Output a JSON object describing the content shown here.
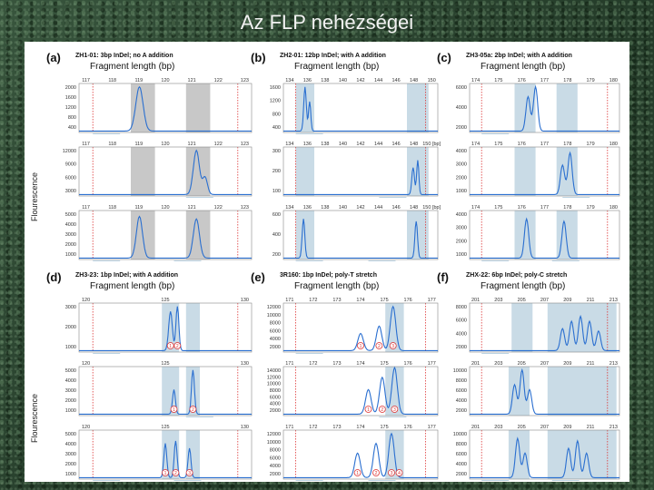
{
  "slide": {
    "title": "Az FLP nehézségei"
  },
  "figure": {
    "y_axis_label": "Flourescence",
    "panels": [
      {
        "label": "(a)",
        "desc": "ZH1-01: 3bp InDel; no A addition",
        "axis_title": "Fragment length (bp)",
        "rows": [
          {
            "ticks": [
              "117",
              "118",
              "119",
              "120",
              "121",
              "122",
              "123"
            ],
            "yticks": [
              "2000",
              "1600",
              "1200",
              "800",
              "400"
            ],
            "tags": [
              "Bristol"
            ]
          },
          {
            "ticks": [
              "117",
              "118",
              "119",
              "120",
              "121",
              "122",
              "123"
            ],
            "yticks": [
              "12000",
              "9000",
              "6000",
              "3000"
            ],
            "tags": [
              "Hawaii"
            ]
          },
          {
            "ticks": [
              "117",
              "118",
              "119",
              "120",
              "121",
              "122",
              "123"
            ],
            "yticks": [
              "5000",
              "4000",
              "3000",
              "2000",
              "1000"
            ],
            "tags": [
              "Bristol",
              "Hawaii"
            ]
          }
        ]
      },
      {
        "label": "(b)",
        "desc": "ZH2-01: 12bp InDel; with A addition",
        "axis_title": "Fragment length (bp)",
        "rows": [
          {
            "ticks": [
              "134",
              "136",
              "138",
              "140",
              "142",
              "144",
              "146",
              "148",
              "150"
            ],
            "yticks": [
              "1600",
              "1200",
              "800",
              "400"
            ],
            "tags": [
              "Bristol"
            ]
          },
          {
            "ticks": [
              "134",
              "136",
              "138",
              "140",
              "142",
              "144",
              "146",
              "148",
              "150 [bp]"
            ],
            "yticks": [
              "300",
              "200",
              "100"
            ],
            "tags": [
              "Hawaii"
            ]
          },
          {
            "ticks": [
              "134",
              "136",
              "138",
              "140",
              "142",
              "144",
              "146",
              "148",
              "150 [bp]"
            ],
            "yticks": [
              "600",
              "400",
              "200"
            ],
            "tags": [
              "Bristol",
              "Hawaii"
            ]
          }
        ]
      },
      {
        "label": "(c)",
        "desc": "ZH3-05a: 2bp InDel; with A addition",
        "axis_title": "Fragment length (bp)",
        "rows": [
          {
            "ticks": [
              "174",
              "175",
              "176",
              "177",
              "178",
              "179",
              "180"
            ],
            "yticks": [
              "6000",
              "4000",
              "2000"
            ],
            "tags": [
              "Bristol"
            ]
          },
          {
            "ticks": [
              "174",
              "175",
              "176",
              "177",
              "178",
              "179",
              "180"
            ],
            "yticks": [
              "4000",
              "3000",
              "2000",
              "1000"
            ],
            "tags": [
              "Hawaii"
            ]
          },
          {
            "ticks": [
              "174",
              "175",
              "176",
              "177",
              "178",
              "179",
              "180"
            ],
            "yticks": [
              "4000",
              "3000",
              "2000",
              "1000"
            ],
            "tags": [
              "Bristol",
              "Hawaii"
            ]
          }
        ]
      },
      {
        "label": "(d)",
        "desc": "ZH3-23: 1bp InDel; with A addition",
        "axis_title": "Fragment length (bp)",
        "rows": [
          {
            "ticks": [
              "120",
              "125",
              "130"
            ],
            "yticks": [
              "3000",
              "2000",
              "1000"
            ],
            "tags": [
              "Bristol"
            ],
            "markers": [
              "1",
              "2"
            ]
          },
          {
            "ticks": [
              "120",
              "125",
              "130"
            ],
            "yticks": [
              "5000",
              "4000",
              "3000",
              "2000",
              "1000"
            ],
            "tags": [
              "Hawaii"
            ],
            "markers": [
              "1",
              "2"
            ]
          },
          {
            "ticks": [
              "120",
              "125",
              "130"
            ],
            "yticks": [
              "5000",
              "4000",
              "3000",
              "2000",
              "1000"
            ],
            "tags": [
              "Bristol",
              "Hawaii"
            ],
            "markers": [
              "1",
              "2",
              "3"
            ]
          }
        ]
      },
      {
        "label": "(e)",
        "desc": "3R160: 1bp InDel; poly-T stretch",
        "axis_title": "Fragment length (bp)",
        "rows": [
          {
            "ticks": [
              "171",
              "172",
              "173",
              "174",
              "175",
              "176",
              "177"
            ],
            "yticks": [
              "12000",
              "10000",
              "8000",
              "6000",
              "4000",
              "2000"
            ],
            "tags": [
              "EF"
            ],
            "markers": [
              "1",
              "2",
              "3"
            ]
          },
          {
            "ticks": [
              "171",
              "172",
              "173",
              "174",
              "175",
              "176",
              "177"
            ],
            "yticks": [
              "14000",
              "12000",
              "10000",
              "8000",
              "6000",
              "4000",
              "2000"
            ],
            "tags": [
              "HH"
            ],
            "markers": [
              "1",
              "2",
              "3"
            ]
          },
          {
            "ticks": [
              "171",
              "172",
              "173",
              "174",
              "175",
              "176",
              "177"
            ],
            "yticks": [
              "12000",
              "10000",
              "8000",
              "6000",
              "4000",
              "2000"
            ],
            "tags": [
              "EF",
              "FHT"
            ],
            "markers": [
              "1",
              "2",
              "3",
              "4"
            ]
          }
        ]
      },
      {
        "label": "(f)",
        "desc": "ZHX-22: 6bp InDel; poly-C stretch",
        "axis_title": "Fragment length (bp)",
        "rows": [
          {
            "ticks": [
              "201",
              "203",
              "205",
              "207",
              "209",
              "211",
              "213"
            ],
            "yticks": [
              "8000",
              "6000",
              "4000",
              "2000"
            ],
            "tags": [
              "Bristol"
            ]
          },
          {
            "ticks": [
              "201",
              "203",
              "205",
              "207",
              "209",
              "211",
              "213"
            ],
            "yticks": [
              "10000",
              "8000",
              "6000",
              "4000",
              "2000"
            ],
            "tags": []
          },
          {
            "ticks": [
              "201",
              "203",
              "205",
              "207",
              "209",
              "211",
              "213"
            ],
            "yticks": [
              "10000",
              "8000",
              "6000",
              "4000",
              "2000"
            ],
            "tags": [
              "Hawaii",
              "Bristol"
            ]
          }
        ]
      }
    ]
  }
}
